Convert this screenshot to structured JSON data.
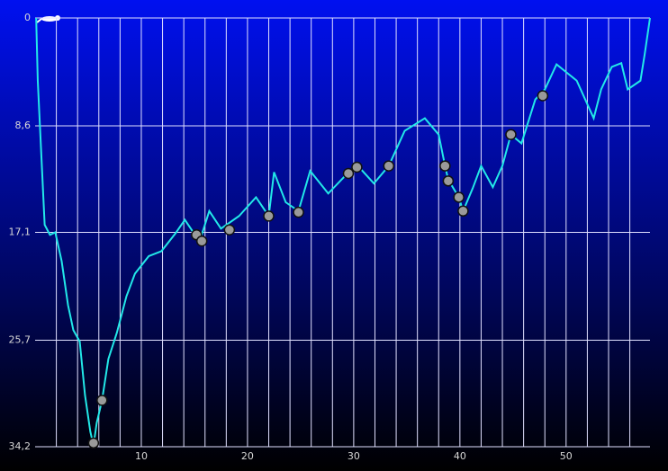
{
  "chart_data": {
    "type": "line",
    "color": "#22e8e8",
    "y_inverted": true,
    "x": [
      0.1,
      0.25,
      0.9,
      1.4,
      1.9,
      2.5,
      3.1,
      3.6,
      4.2,
      4.7,
      5.2,
      5.5,
      5.8,
      6.3,
      6.9,
      7.7,
      8.6,
      9.4,
      10.7,
      11.9,
      13.2,
      14.1,
      14.9,
      15.5,
      16.4,
      17.5,
      19.2,
      20.8,
      22.0,
      22.5,
      23.6,
      24.8,
      25.9,
      27.6,
      29.3,
      30.4,
      31.9,
      33.3,
      34.8,
      36.7,
      38.0,
      38.6,
      38.9,
      39.9,
      40.3,
      41.2,
      42.0,
      43.1,
      44.0,
      44.8,
      45.8,
      47.1,
      48.0,
      49.1,
      51.0,
      52.6,
      53.3,
      54.3,
      55.2,
      55.8,
      57.0,
      57.4,
      57.9
    ],
    "values": [
      0,
      5.0,
      16.5,
      17.3,
      17.1,
      19.4,
      22.9,
      24.9,
      25.8,
      30.1,
      33.0,
      34.1,
      32.3,
      30.5,
      27.2,
      25.1,
      22.2,
      20.4,
      19.0,
      18.6,
      17.2,
      16.1,
      17.1,
      17.8,
      15.4,
      16.8,
      15.8,
      14.3,
      15.8,
      12.3,
      14.7,
      15.4,
      12.2,
      14.0,
      12.5,
      11.8,
      13.2,
      11.8,
      9.0,
      8.0,
      9.3,
      11.8,
      12.9,
      14.3,
      15.4,
      13.6,
      11.8,
      13.5,
      11.8,
      9.3,
      10.0,
      6.5,
      5.7,
      3.7,
      5.0,
      8.0,
      5.7,
      3.9,
      3.6,
      5.7,
      5.0,
      2.9,
      0
    ],
    "markers": {
      "x": [
        6.3,
        5.5,
        15.2,
        15.7,
        18.3,
        22.0,
        24.8,
        29.5,
        30.3,
        33.3,
        38.6,
        38.9,
        39.9,
        40.3,
        44.8,
        47.8
      ],
      "y": [
        30.5,
        33.9,
        17.3,
        17.8,
        16.9,
        15.8,
        15.5,
        12.4,
        11.9,
        11.8,
        11.8,
        13.0,
        14.3,
        15.4,
        9.3,
        6.2
      ]
    },
    "xlim": [
      0,
      57.9
    ],
    "ylim": [
      0,
      34.2
    ],
    "xticks": [
      10,
      20,
      30,
      40,
      50
    ],
    "xgrid": [
      2,
      4,
      6,
      8,
      10,
      12,
      14,
      16,
      18,
      20,
      22,
      24,
      26,
      28,
      30,
      32,
      34,
      36,
      38,
      40,
      42,
      44,
      46,
      48,
      50,
      52,
      54,
      56
    ],
    "yticks": [
      0,
      {
        "value": 8.6,
        "label": "8,6"
      },
      {
        "value": 17.1,
        "label": "17,1"
      },
      {
        "value": 25.7,
        "label": "25,7"
      },
      {
        "value": 34.2,
        "label": "34,2"
      }
    ],
    "grid": true
  }
}
